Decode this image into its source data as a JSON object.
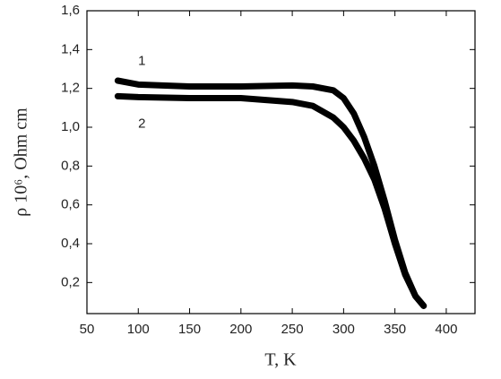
{
  "chart_data": {
    "type": "line",
    "xlabel": "T, K",
    "ylabel": "ρ 10⁶, Ohm cm",
    "xlim": [
      50,
      428
    ],
    "xticks": [
      50,
      100,
      150,
      200,
      250,
      300,
      350,
      400
    ],
    "ylim": [
      0.04,
      1.6
    ],
    "yticks": [
      {
        "value": 0.2,
        "label": "0,2"
      },
      {
        "value": 0.4,
        "label": "0,4"
      },
      {
        "value": 0.6,
        "label": "0,6"
      },
      {
        "value": 0.8,
        "label": "0,8"
      },
      {
        "value": 1.0,
        "label": "1,0"
      },
      {
        "value": 1.2,
        "label": "1,2"
      },
      {
        "value": 1.4,
        "label": "1,4"
      },
      {
        "value": 1.6,
        "label": "1,6"
      }
    ],
    "x": [
      80,
      100,
      150,
      200,
      250,
      270,
      290,
      300,
      310,
      320,
      330,
      340,
      350,
      360,
      370,
      378
    ],
    "series": [
      {
        "name": "1",
        "color": "#000000",
        "values": [
          1.24,
          1.22,
          1.21,
          1.21,
          1.215,
          1.21,
          1.19,
          1.15,
          1.07,
          0.95,
          0.8,
          0.62,
          0.42,
          0.25,
          0.13,
          0.08
        ]
      },
      {
        "name": "2",
        "color": "#000000",
        "values": [
          1.16,
          1.155,
          1.15,
          1.15,
          1.13,
          1.11,
          1.05,
          1.0,
          0.93,
          0.84,
          0.73,
          0.58,
          0.4,
          0.24,
          0.13,
          0.08
        ]
      }
    ]
  }
}
